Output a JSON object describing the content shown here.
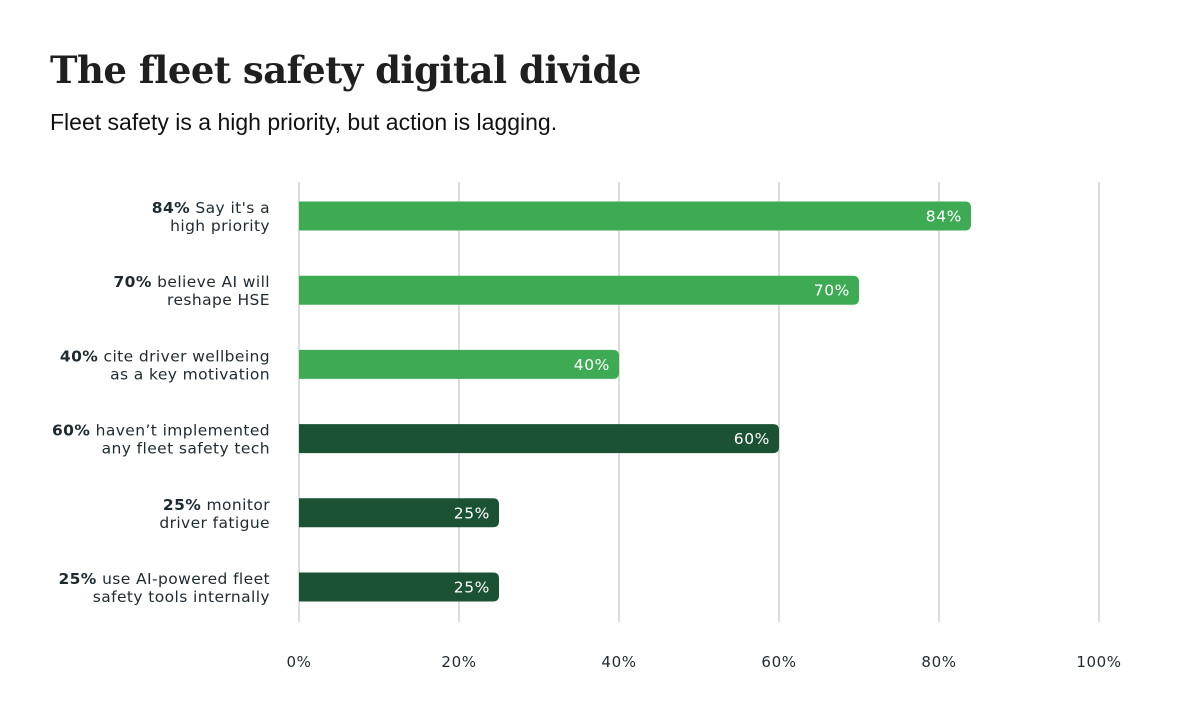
{
  "chart_data": {
    "type": "bar",
    "orientation": "horizontal",
    "title": "The fleet safety digital divide",
    "subtitle": "Fleet safety is a high priority, but action is lagging.",
    "xlabel": "",
    "ylabel": "",
    "xlim": [
      0,
      100
    ],
    "grid": true,
    "legend": "none",
    "categories": [
      {
        "lead": "84%",
        "line1": "Say it's a",
        "line2": "high priority"
      },
      {
        "lead": "70%",
        "line1": "believe AI will",
        "line2": "reshape HSE"
      },
      {
        "lead": "40%",
        "line1": "cite driver wellbeing",
        "line2": "as a key motivation"
      },
      {
        "lead": "60%",
        "line1": "haven’t implemented",
        "line2": "any fleet safety tech"
      },
      {
        "lead": "25%",
        "line1": "monitor",
        "line2": "driver fatigue"
      },
      {
        "lead": "25%",
        "line1": "use AI-powered fleet",
        "line2": "safety tools internally"
      }
    ],
    "values": [
      84,
      70,
      40,
      60,
      25,
      25
    ],
    "value_labels": [
      "84%",
      "70%",
      "40%",
      "60%",
      "25%",
      "25%"
    ],
    "bar_colors": [
      "#3eab54",
      "#3eab54",
      "#3eab54",
      "#1b5233",
      "#1b5233",
      "#1b5233"
    ],
    "x_ticks": [
      0,
      20,
      40,
      60,
      80,
      100
    ],
    "x_tick_labels": [
      "0%",
      "20%",
      "40%",
      "60%",
      "80%",
      "100%"
    ],
    "gridline_color": "#dcdcdc"
  }
}
